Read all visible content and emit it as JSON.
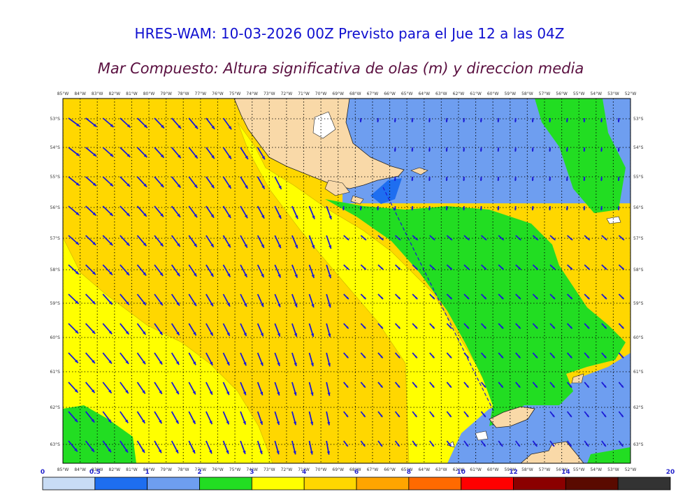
{
  "title": "HRES-WAM: 10-03-2026 00Z Previsto para el Jue 12 a las 04Z",
  "subtitle": "Mar Compuesto: Altura significativa de olas (m) y direccion media",
  "lon_labels": [
    "85°W",
    "84°W",
    "83°W",
    "82°W",
    "81°W",
    "80°W",
    "79°W",
    "78°W",
    "77°W",
    "76°W",
    "75°W",
    "74°W",
    "73°W",
    "72°W",
    "71°W",
    "70°W",
    "69°W",
    "68°W",
    "67°W",
    "66°W",
    "65°W",
    "64°W",
    "63°W",
    "62°W",
    "61°W",
    "60°W",
    "59°W",
    "58°W",
    "57°W",
    "56°W",
    "55°W",
    "54°W",
    "53°W",
    "52°W"
  ],
  "lat_labels": [
    "53°S",
    "54°S",
    "55°S",
    "56°S",
    "57°S",
    "58°S",
    "59°S",
    "60°S",
    "61°S",
    "62°S",
    "63°S"
  ],
  "colorbar": {
    "ticks": [
      "0",
      "0.5",
      "1",
      "2",
      "3",
      "4",
      "6",
      "8",
      "10",
      "12",
      "14",
      "20"
    ],
    "colors": [
      "#c8dcf5",
      "#1e6ef0",
      "#6e9ef0",
      "#22dd22",
      "#ffff00",
      "#ffd700",
      "#ffa500",
      "#ff6a00",
      "#ff0000",
      "#8b0000",
      "#5a0a00",
      "#333333"
    ]
  },
  "legend_colors": {
    "land": "#f9d9a8",
    "swh_1_2": "#6e9ef0",
    "swh_2_3": "#22dd22",
    "swh_3_4": "#ffff00",
    "swh_4_6": "#ffd700",
    "swh_0_5_1": "#1e6ef0",
    "arrows": "#1a1ad6"
  }
}
